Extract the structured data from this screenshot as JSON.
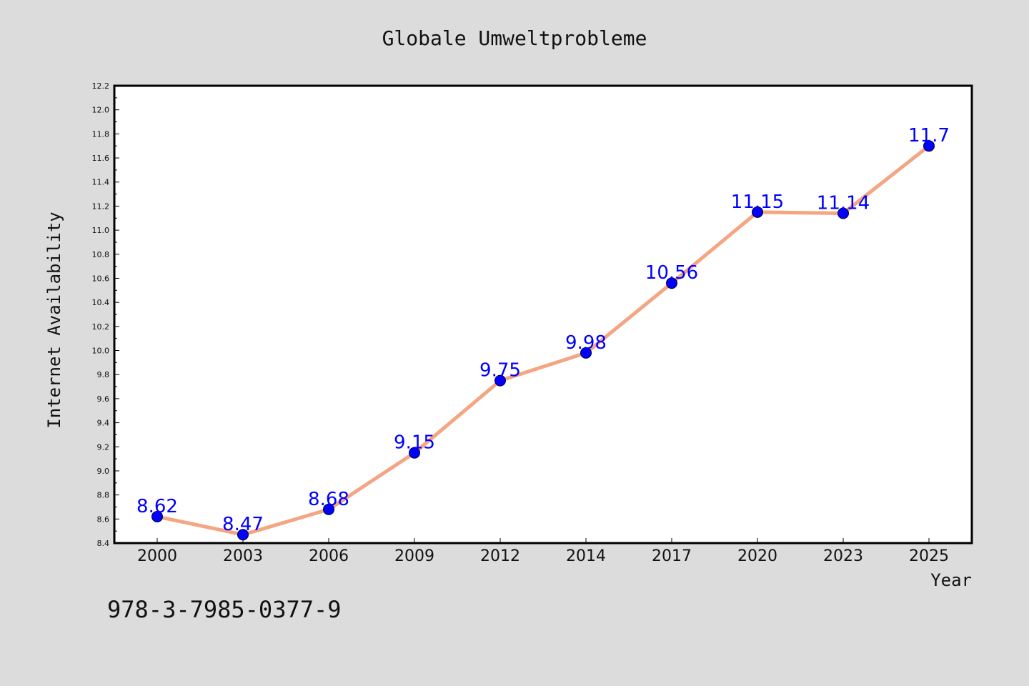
{
  "isbn": "978-3-7985-0377-9",
  "colors": {
    "background": "#dcdcdc",
    "plot_background": "#ffffff",
    "line": "#f4a582",
    "marker": "#0000ff",
    "data_label": "#0000ff"
  },
  "chart_data": {
    "type": "line",
    "title": "Globale Umweltprobleme",
    "xlabel": "Year",
    "ylabel": "Internet Availability",
    "categories": [
      "2000",
      "2003",
      "2006",
      "2009",
      "2012",
      "2014",
      "2017",
      "2020",
      "2023",
      "2025"
    ],
    "values": [
      8.62,
      8.47,
      8.68,
      9.15,
      9.75,
      9.98,
      10.56,
      11.15,
      11.14,
      11.7
    ],
    "data_labels": [
      "8.62",
      "8.47",
      "8.68",
      "9.15",
      "9.75",
      "9.98",
      "10.56",
      "11.15",
      "11.14",
      "11.7"
    ],
    "ylim": [
      8.4,
      12.2
    ],
    "y_ticks": [
      "8.4",
      "8.6",
      "8.8",
      "9.0",
      "9.2",
      "9.4",
      "9.6",
      "9.8",
      "10.0",
      "10.2",
      "10.4",
      "10.6",
      "10.8",
      "11.0",
      "11.2",
      "11.4",
      "11.6",
      "11.8",
      "12.0",
      "12.2"
    ],
    "grid": false,
    "legend": "none",
    "marker": "circle"
  }
}
